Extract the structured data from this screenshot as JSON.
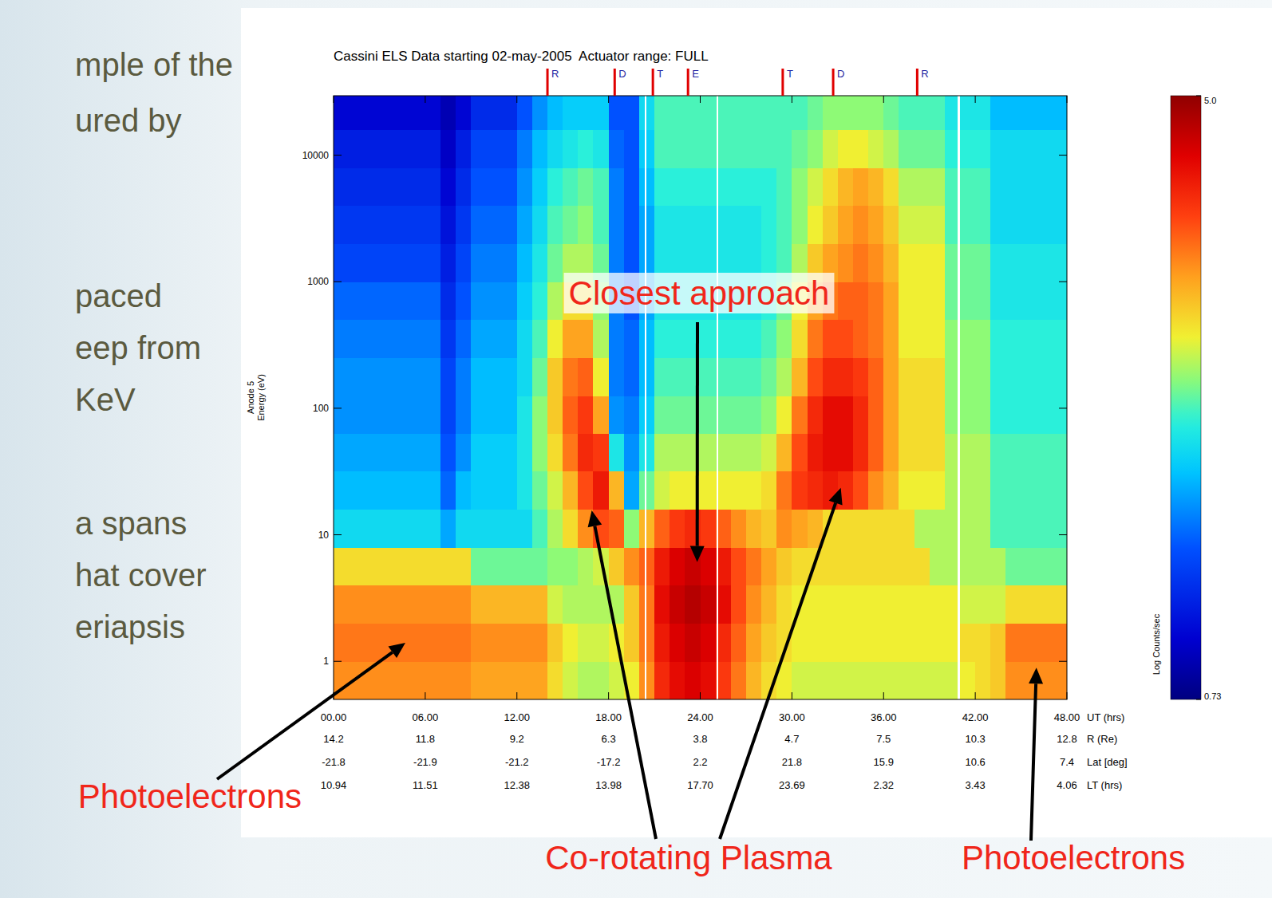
{
  "chart_data": {
    "type": "heatmap",
    "title": "Cassini ELS Data starting 02-may-2005  Actuator range: FULL",
    "ylabel": "Anode 5\nEnergy (eV)",
    "xlabel": "UT (hrs)",
    "log": "y",
    "xlim": [
      0,
      48
    ],
    "ylim": [
      0.5,
      29500
    ],
    "xticks": [
      {
        "value": 0,
        "label": "00.00"
      },
      {
        "value": 6,
        "label": "06.00"
      },
      {
        "value": 12,
        "label": "12.00"
      },
      {
        "value": 18,
        "label": "18.00"
      },
      {
        "value": 24,
        "label": "24.00"
      },
      {
        "value": 30,
        "label": "30.00"
      },
      {
        "value": 36,
        "label": "36.00"
      },
      {
        "value": 42,
        "label": "42.00"
      },
      {
        "value": 48,
        "label": "48.00"
      }
    ],
    "yticks": [
      1,
      10,
      100,
      1000,
      10000
    ],
    "ephemeris": [
      {
        "label": "R (Re)",
        "values": [
          14.2,
          11.8,
          9.2,
          6.3,
          3.8,
          4.7,
          7.5,
          10.3,
          12.8
        ]
      },
      {
        "label": "Lat [deg]",
        "values": [
          -21.8,
          -21.9,
          -21.2,
          -17.2,
          2.2,
          21.8,
          15.9,
          10.6,
          7.4
        ]
      },
      {
        "label": "LT (hrs)",
        "values": [
          10.94,
          11.51,
          12.38,
          13.98,
          {
            "value": 17.7,
            "label": "17.70"
          },
          23.69,
          2.32,
          3.43,
          4.06
        ]
      }
    ],
    "markers": [
      {
        "x": 14.0,
        "label": "R"
      },
      {
        "x": 18.4,
        "label": "D"
      },
      {
        "x": 20.9,
        "label": "T"
      },
      {
        "x": 23.2,
        "label": "E"
      },
      {
        "x": 29.4,
        "label": "T"
      },
      {
        "x": 32.7,
        "label": "D"
      },
      {
        "x": 38.2,
        "label": "R"
      }
    ],
    "data_gaps": [
      20.4,
      25.1,
      40.9
    ],
    "x_edges": [
      0,
      1,
      2,
      3,
      4,
      5,
      6,
      7,
      8,
      9,
      10,
      11,
      12,
      13,
      14,
      15,
      16,
      17,
      18,
      19,
      20,
      21,
      22,
      23,
      24,
      25,
      26,
      27,
      28,
      29,
      30,
      31,
      32,
      33,
      34,
      35,
      36,
      37,
      38,
      39,
      40,
      41,
      42,
      43,
      44,
      45,
      46,
      47,
      48
    ],
    "y_edges": [
      0.5,
      1,
      2,
      4,
      8,
      16,
      32,
      63,
      126,
      251,
      501,
      1000,
      2000,
      4000,
      8000,
      16000,
      29500
    ],
    "z": [
      [
        3.8,
        3.8,
        3.8,
        3.8,
        3.8,
        3.8,
        3.8,
        3.8,
        3.8,
        3.7,
        3.7,
        3.7,
        3.7,
        3.7,
        3.4,
        3.2,
        3.1,
        3.1,
        3.2,
        3.3,
        3.8,
        4.3,
        4.5,
        4.6,
        4.5,
        4.2,
        3.9,
        3.6,
        3.4,
        3.3,
        3.2,
        3.2,
        3.2,
        3.2,
        3.2,
        3.2,
        3.2,
        3.2,
        3.2,
        3.2,
        3.2,
        3.3,
        3.4,
        3.5,
        3.8,
        3.8,
        3.8,
        3.8
      ],
      [
        3.9,
        3.9,
        3.9,
        3.9,
        3.9,
        3.9,
        3.9,
        3.9,
        3.9,
        3.8,
        3.8,
        3.8,
        3.8,
        3.8,
        3.5,
        3.3,
        3.2,
        3.2,
        3.3,
        3.5,
        3.9,
        4.4,
        4.6,
        4.7,
        4.6,
        4.3,
        4.0,
        3.7,
        3.5,
        3.4,
        3.3,
        3.3,
        3.3,
        3.3,
        3.3,
        3.3,
        3.3,
        3.3,
        3.3,
        3.3,
        3.3,
        3.4,
        3.4,
        3.5,
        3.9,
        3.9,
        3.9,
        3.9
      ],
      [
        3.8,
        3.8,
        3.8,
        3.8,
        3.8,
        3.8,
        3.8,
        3.8,
        3.8,
        3.6,
        3.6,
        3.6,
        3.6,
        3.6,
        3.2,
        3.1,
        3.1,
        3.1,
        3.1,
        3.5,
        3.9,
        4.5,
        4.7,
        4.8,
        4.7,
        4.5,
        4.1,
        3.8,
        3.6,
        3.4,
        3.3,
        3.3,
        3.3,
        3.3,
        3.3,
        3.3,
        3.3,
        3.3,
        3.3,
        3.3,
        3.3,
        3.2,
        3.2,
        3.2,
        3.4,
        3.4,
        3.4,
        3.4
      ],
      [
        3.4,
        3.4,
        3.4,
        3.4,
        3.4,
        3.4,
        3.4,
        3.4,
        3.4,
        2.9,
        2.9,
        2.9,
        2.9,
        2.9,
        3.0,
        3.0,
        3.1,
        3.2,
        3.5,
        3.8,
        4.0,
        4.4,
        4.6,
        4.7,
        4.6,
        4.4,
        4.1,
        3.9,
        3.7,
        3.5,
        3.4,
        3.4,
        3.4,
        3.4,
        3.4,
        3.4,
        3.4,
        3.4,
        3.4,
        3.1,
        3.1,
        3.1,
        3.1,
        3.1,
        2.9,
        2.9,
        2.9,
        2.9
      ],
      [
        2.5,
        2.5,
        2.5,
        2.5,
        2.5,
        2.5,
        2.5,
        2.2,
        2.5,
        2.5,
        2.5,
        2.5,
        2.5,
        2.8,
        3.1,
        3.4,
        3.8,
        4.1,
        4.0,
        3.0,
        3.6,
        4.0,
        4.2,
        4.3,
        4.2,
        4.0,
        3.8,
        3.6,
        3.5,
        3.8,
        3.7,
        3.6,
        3.4,
        3.4,
        3.4,
        3.4,
        3.4,
        3.4,
        3.1,
        3.1,
        3.1,
        3.1,
        3.1,
        2.8,
        2.8,
        2.8,
        2.8,
        2.8
      ],
      [
        2.3,
        2.3,
        2.3,
        2.3,
        2.3,
        2.3,
        2.3,
        1.9,
        2.3,
        2.4,
        2.4,
        2.4,
        2.6,
        2.9,
        3.2,
        3.6,
        4.1,
        4.4,
        3.6,
        2.2,
        2.9,
        3.2,
        3.3,
        3.3,
        3.3,
        3.3,
        3.3,
        3.3,
        3.4,
        3.9,
        4.2,
        4.3,
        4.4,
        4.3,
        4.1,
        3.8,
        3.6,
        3.3,
        3.3,
        3.3,
        3.1,
        3.1,
        3.1,
        2.8,
        2.8,
        2.8,
        2.8,
        2.8
      ],
      [
        2.2,
        2.2,
        2.2,
        2.2,
        2.2,
        2.2,
        2.2,
        1.8,
        2.1,
        2.4,
        2.4,
        2.4,
        2.6,
        3.0,
        3.4,
        3.9,
        4.3,
        4.2,
        2.6,
        2.1,
        2.6,
        3.1,
        3.1,
        3.1,
        3.1,
        3.1,
        3.1,
        3.1,
        3.2,
        3.6,
        4.1,
        4.4,
        4.5,
        4.5,
        4.3,
        4.0,
        3.7,
        3.4,
        3.4,
        3.4,
        3.1,
        3.1,
        3.1,
        2.8,
        2.8,
        2.8,
        2.8,
        2.8
      ],
      [
        2.1,
        2.1,
        2.1,
        2.1,
        2.1,
        2.1,
        2.1,
        1.7,
        2.0,
        2.3,
        2.3,
        2.3,
        2.6,
        3.0,
        3.5,
        4.0,
        4.2,
        3.7,
        2.1,
        2.0,
        2.4,
        2.9,
        2.9,
        2.9,
        2.9,
        2.9,
        2.9,
        2.9,
        3.0,
        3.3,
        3.9,
        4.3,
        4.5,
        4.5,
        4.3,
        4.0,
        3.7,
        3.4,
        3.4,
        3.4,
        3.0,
        3.0,
        3.0,
        2.7,
        2.7,
        2.7,
        2.7,
        2.7
      ],
      [
        2.1,
        2.1,
        2.1,
        2.1,
        2.1,
        2.1,
        2.1,
        1.7,
        2.0,
        2.3,
        2.3,
        2.3,
        2.5,
        2.9,
        3.5,
        3.9,
        4.0,
        3.3,
        2.0,
        1.9,
        2.3,
        2.8,
        2.8,
        2.8,
        2.8,
        2.8,
        2.8,
        2.8,
        2.9,
        3.1,
        3.6,
        4.1,
        4.3,
        4.3,
        4.2,
        4.0,
        3.7,
        3.4,
        3.4,
        3.4,
        3.0,
        3.0,
        3.0,
        2.7,
        2.7,
        2.7,
        2.7,
        2.7
      ],
      [
        2.0,
        2.0,
        2.0,
        2.0,
        2.0,
        2.0,
        2.0,
        1.6,
        1.9,
        2.2,
        2.2,
        2.2,
        2.5,
        2.8,
        3.3,
        3.7,
        3.7,
        3.1,
        2.0,
        1.9,
        2.3,
        2.7,
        2.7,
        2.7,
        2.7,
        2.7,
        2.7,
        2.7,
        2.8,
        3.0,
        3.4,
        3.9,
        4.1,
        4.1,
        4.0,
        3.9,
        3.7,
        3.3,
        3.3,
        3.3,
        3.0,
        3.0,
        3.0,
        2.7,
        2.7,
        2.7,
        2.7,
        2.7
      ],
      [
        1.9,
        1.9,
        1.9,
        1.9,
        1.9,
        1.9,
        1.9,
        1.5,
        1.8,
        2.1,
        2.1,
        2.1,
        2.4,
        2.7,
        3.1,
        3.4,
        3.4,
        3.0,
        2.0,
        1.8,
        2.2,
        2.6,
        2.6,
        2.6,
        2.6,
        2.6,
        2.6,
        2.6,
        2.7,
        2.9,
        3.3,
        3.7,
        3.9,
        4.0,
        4.0,
        3.9,
        3.7,
        3.3,
        3.3,
        3.3,
        2.9,
        2.9,
        2.9,
        2.6,
        2.6,
        2.6,
        2.6,
        2.6
      ],
      [
        1.7,
        1.7,
        1.7,
        1.7,
        1.7,
        1.7,
        1.7,
        1.4,
        1.7,
        2.0,
        2.0,
        2.0,
        2.3,
        2.6,
        2.9,
        3.1,
        3.1,
        2.9,
        2.0,
        1.8,
        2.2,
        2.6,
        2.6,
        2.6,
        2.6,
        2.6,
        2.6,
        2.6,
        2.7,
        2.8,
        3.1,
        3.5,
        3.7,
        3.8,
        3.9,
        3.8,
        3.6,
        3.3,
        3.3,
        3.3,
        2.9,
        2.9,
        2.9,
        2.6,
        2.6,
        2.6,
        2.6,
        2.6
      ],
      [
        1.6,
        1.6,
        1.6,
        1.6,
        1.6,
        1.6,
        1.6,
        1.3,
        1.6,
        1.9,
        1.9,
        1.9,
        2.2,
        2.5,
        2.8,
        2.9,
        3.0,
        2.8,
        2.0,
        1.8,
        2.2,
        2.6,
        2.6,
        2.6,
        2.6,
        2.6,
        2.6,
        2.6,
        2.7,
        2.8,
        3.0,
        3.3,
        3.5,
        3.7,
        3.8,
        3.7,
        3.5,
        3.2,
        3.2,
        3.2,
        2.8,
        2.8,
        2.8,
        2.5,
        2.5,
        2.5,
        2.5,
        2.5
      ],
      [
        1.5,
        1.5,
        1.5,
        1.5,
        1.5,
        1.5,
        1.5,
        1.2,
        1.5,
        1.8,
        1.8,
        1.8,
        2.1,
        2.4,
        2.7,
        2.8,
        2.9,
        2.8,
        2.0,
        1.8,
        2.3,
        2.7,
        2.7,
        2.7,
        2.7,
        2.7,
        2.7,
        2.7,
        2.7,
        2.8,
        3.0,
        3.2,
        3.4,
        3.6,
        3.7,
        3.6,
        3.4,
        3.1,
        3.1,
        3.1,
        2.8,
        2.8,
        2.8,
        2.5,
        2.5,
        2.5,
        2.5,
        2.5
      ],
      [
        1.4,
        1.4,
        1.4,
        1.4,
        1.4,
        1.4,
        1.4,
        1.1,
        1.4,
        1.7,
        1.7,
        1.7,
        2.0,
        2.3,
        2.5,
        2.6,
        2.7,
        2.6,
        1.9,
        1.8,
        2.4,
        2.8,
        2.8,
        2.8,
        2.8,
        2.8,
        2.8,
        2.8,
        2.8,
        2.8,
        2.9,
        3.0,
        3.2,
        3.3,
        3.3,
        3.2,
        3.1,
        2.9,
        2.9,
        2.9,
        2.7,
        2.7,
        2.7,
        2.5,
        2.5,
        2.5,
        2.5,
        2.5
      ],
      [
        1.2,
        1.2,
        1.2,
        1.2,
        1.2,
        1.2,
        1.2,
        1.0,
        1.2,
        1.5,
        1.5,
        1.5,
        1.8,
        2.1,
        2.3,
        2.4,
        2.4,
        2.4,
        1.8,
        1.8,
        2.5,
        2.8,
        2.8,
        2.8,
        2.8,
        2.8,
        2.8,
        2.8,
        2.8,
        2.8,
        2.8,
        2.9,
        3.0,
        3.0,
        3.0,
        3.0,
        2.9,
        2.8,
        2.8,
        2.8,
        2.6,
        2.6,
        2.6,
        2.3,
        2.3,
        2.3,
        2.3,
        2.3
      ]
    ],
    "colorbar": {
      "label": "Log Counts/sec",
      "range": [
        0.73,
        5.0
      ],
      "ticks": [
        0.73,
        {
          "value": 5.0,
          "label": "5.0"
        }
      ]
    },
    "annotations": [
      {
        "text": "Closest approach",
        "targets": [
          [
            23.8,
            6.1
          ]
        ]
      },
      {
        "text": "Co-rotating Plasma",
        "targets": [
          [
            16.9,
            15.6
          ],
          [
            33.2,
            23.5
          ]
        ]
      },
      {
        "text": "Photoelectrons",
        "targets": [
          [
            4.7,
            1.4
          ]
        ]
      },
      {
        "text": "Photoelectrons",
        "targets": [
          [
            46.0,
            0.89
          ]
        ]
      }
    ]
  },
  "slide": {
    "lines": [
      "mple of the",
      "ured by",
      "paced",
      "eep from",
      "KeV",
      "a spans",
      "hat cover",
      "eriapsis"
    ]
  }
}
